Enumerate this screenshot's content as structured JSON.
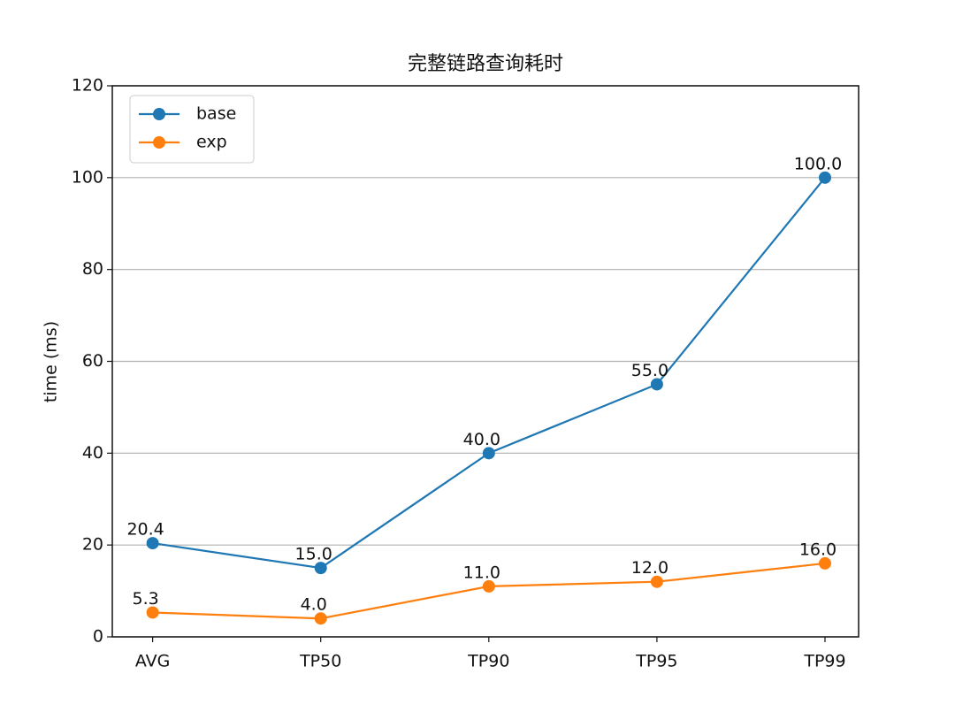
{
  "chart_data": {
    "type": "line",
    "title": "完整链路查询耗时",
    "ylabel": "time (ms)",
    "categories": [
      "AVG",
      "TP50",
      "TP90",
      "TP95",
      "TP99"
    ],
    "series": [
      {
        "name": "base",
        "color": "#1f77b4",
        "values": [
          20.4,
          15.0,
          40.0,
          55.0,
          100.0
        ],
        "value_labels": [
          "20.4",
          "15.0",
          "40.0",
          "55.0",
          "100.0"
        ]
      },
      {
        "name": "exp",
        "color": "#ff7f0e",
        "values": [
          5.3,
          4.0,
          11.0,
          12.0,
          16.0
        ],
        "value_labels": [
          "5.3",
          "4.0",
          "11.0",
          "12.0",
          "16.0"
        ]
      }
    ],
    "ylim": [
      0,
      120
    ],
    "yticks": [
      0,
      20,
      40,
      60,
      80,
      100,
      120
    ],
    "grid": true,
    "legend": "upper left"
  }
}
